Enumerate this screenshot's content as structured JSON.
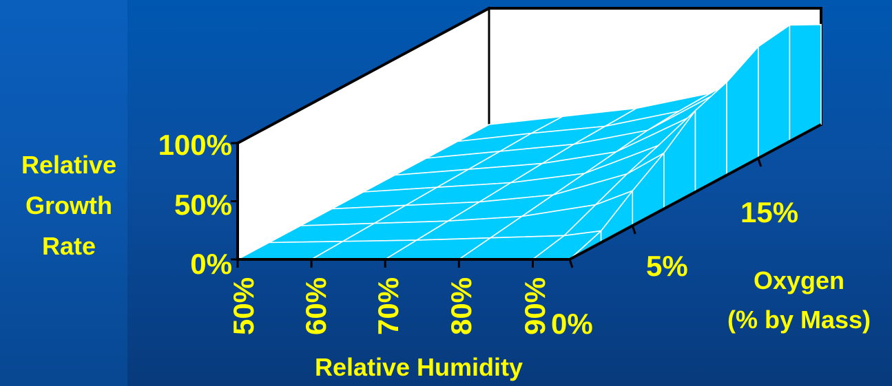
{
  "chart_data": {
    "type": "surface",
    "zlabel": [
      "Relative",
      "Growth",
      "Rate"
    ],
    "xlabel": "Relative Humidity",
    "ylabel": [
      "Oxygen",
      "(% by Mass)"
    ],
    "x_ticks": [
      "50%",
      "60%",
      "70%",
      "80%",
      "90%"
    ],
    "y_ticks": [
      "0%",
      "5%",
      "15%"
    ],
    "z_ticks": [
      "0%",
      "50%",
      "100%"
    ],
    "zlim": [
      0,
      100
    ],
    "highlight_threshold": 50,
    "colors": {
      "surface": "#00ccff",
      "peak": "#ff3300",
      "mesh": "#ffffff",
      "frame": "#000000",
      "wall": "#ffffff",
      "text": "#ffff00"
    },
    "surface": {
      "humidity": [
        50,
        60,
        70,
        80,
        90,
        95
      ],
      "oxygen": [
        0,
        2.5,
        5,
        7.5,
        10,
        12.5,
        15,
        17.5,
        20
      ],
      "growth": [
        [
          0,
          0,
          0,
          0,
          0,
          0
        ],
        [
          0,
          1,
          2,
          4,
          6,
          10
        ],
        [
          0,
          2,
          4,
          8,
          18,
          30
        ],
        [
          0,
          3,
          6,
          12,
          30,
          48
        ],
        [
          0,
          4,
          8,
          16,
          40,
          70
        ],
        [
          0,
          5,
          10,
          20,
          50,
          80
        ],
        [
          0,
          6,
          12,
          24,
          58,
          96
        ],
        [
          0,
          7,
          13,
          26,
          62,
          100
        ],
        [
          0,
          7,
          14,
          27,
          60,
          86
        ]
      ]
    }
  }
}
